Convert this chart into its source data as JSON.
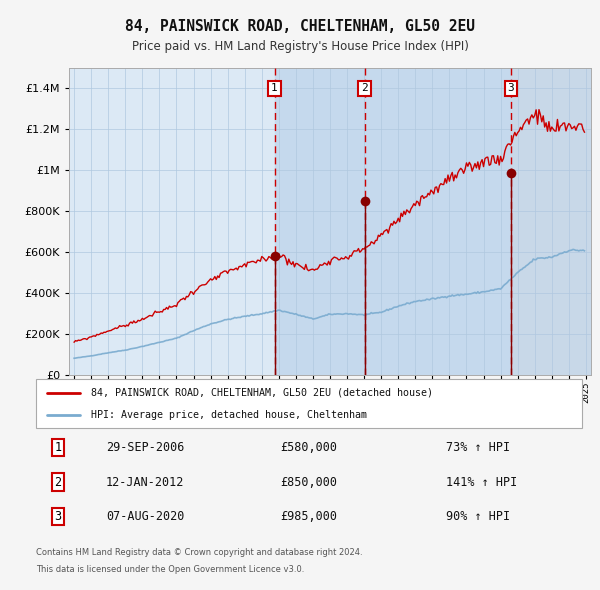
{
  "title": "84, PAINSWICK ROAD, CHELTENHAM, GL50 2EU",
  "subtitle": "Price paid vs. HM Land Registry's House Price Index (HPI)",
  "legend_line1": "84, PAINSWICK ROAD, CHELTENHAM, GL50 2EU (detached house)",
  "legend_line2": "HPI: Average price, detached house, Cheltenham",
  "footer1": "Contains HM Land Registry data © Crown copyright and database right 2024.",
  "footer2": "This data is licensed under the Open Government Licence v3.0.",
  "transactions": [
    {
      "num": 1,
      "date": "29-SEP-2006",
      "price": 580000,
      "pct": "73%",
      "x_year": 2006.75
    },
    {
      "num": 2,
      "date": "12-JAN-2012",
      "price": 850000,
      "pct": "141%",
      "x_year": 2012.03
    },
    {
      "num": 3,
      "date": "07-AUG-2020",
      "price": 985000,
      "pct": "90%",
      "x_year": 2020.6
    }
  ],
  "red_color": "#cc0000",
  "blue_color": "#7aabcf",
  "dot_color": "#880000",
  "vline_color": "#cc0000",
  "chart_bg": "#dce9f5",
  "shade_color": "#c8dff0",
  "grid_color": "#b0c8e0",
  "bg_color": "#f5f5f5",
  "ylim": [
    0,
    1500000
  ],
  "xlim_start": 1994.7,
  "xlim_end": 2025.3,
  "sale1_price": 580000,
  "sale2_price": 850000,
  "sale3_price": 985000,
  "blue_base": {
    "1995": 80000,
    "1996": 92000,
    "1997": 107000,
    "1998": 120000,
    "1999": 138000,
    "2000": 158000,
    "2001": 178000,
    "2002": 215000,
    "2003": 248000,
    "2004": 270000,
    "2005": 285000,
    "2006": 298000,
    "2007": 315000,
    "2008": 295000,
    "2009": 272000,
    "2010": 295000,
    "2011": 298000,
    "2012": 292000,
    "2013": 305000,
    "2014": 335000,
    "2015": 358000,
    "2016": 370000,
    "2017": 385000,
    "2018": 393000,
    "2019": 405000,
    "2020": 420000,
    "2021": 498000,
    "2022": 565000,
    "2023": 575000,
    "2024": 608000
  },
  "red_base": {
    "1995": 160000,
    "1996": 185000,
    "1997": 215000,
    "1998": 242000,
    "1999": 272000,
    "2000": 308000,
    "2001": 345000,
    "2002": 410000,
    "2003": 460000,
    "2004": 505000,
    "2005": 535000,
    "2006": 565000,
    "2007": 590000,
    "2008": 540000,
    "2009": 510000,
    "2010": 565000,
    "2011": 580000,
    "2012": 620000,
    "2013": 680000,
    "2014": 760000,
    "2015": 840000,
    "2016": 900000,
    "2017": 960000,
    "2018": 1000000,
    "2019": 1050000,
    "2020": 1060000,
    "2021": 1200000,
    "2022": 1280000,
    "2023": 1200000,
    "2024": 1220000
  }
}
